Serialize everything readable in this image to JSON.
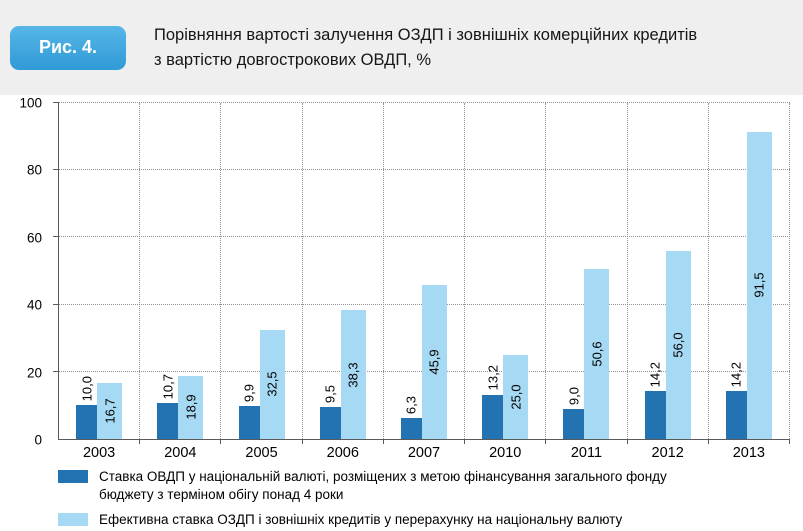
{
  "header": {
    "figure_label": "Рис. 4.",
    "title_lines": [
      "Порівняння вартості залучення ОЗДП і зовнішніх комерційних кредитів",
      "з вартістю довгострокових ОВДП, %"
    ]
  },
  "chart_data": {
    "type": "bar",
    "title": "Порівняння вартості залучення ОЗДП і зовнішніх комерційних кредитів з вартістю довгострокових ОВДП, %",
    "categories": [
      "2003",
      "2004",
      "2005",
      "2006",
      "2007",
      "2010",
      "2011",
      "2012",
      "2013"
    ],
    "series": [
      {
        "name": "Ставка ОВДП у національній валюті, розміщених з метою фінансування загального фонду бюджету  з терміном обігу понад 4 роки",
        "color": "#2373b3",
        "values": [
          10.0,
          10.7,
          9.9,
          9.5,
          6.3,
          13.2,
          9.0,
          14.2,
          14.2
        ],
        "labels": [
          "10,0",
          "10,7",
          "9,9",
          "9,5",
          "6,3",
          "13,2",
          "9,0",
          "14,2",
          "14,2"
        ]
      },
      {
        "name": "Ефективна ставка ОЗДП і зовнішніх кредитів у перерахунку на національну валюту",
        "color": "#a6d9f3",
        "values": [
          16.7,
          18.9,
          32.5,
          38.3,
          45.9,
          25.0,
          50.6,
          56.0,
          91.5
        ],
        "labels": [
          "16,7",
          "18,9",
          "32,5",
          "38,3",
          "45,9",
          "25,0",
          "50,6",
          "56,0",
          "91,5"
        ]
      }
    ],
    "ylim": [
      0,
      100
    ],
    "yticks": [
      0,
      20,
      40,
      60,
      80,
      100
    ],
    "grid": "dotted",
    "legend_position": "bottom",
    "value_label_orientation": "vertical"
  }
}
